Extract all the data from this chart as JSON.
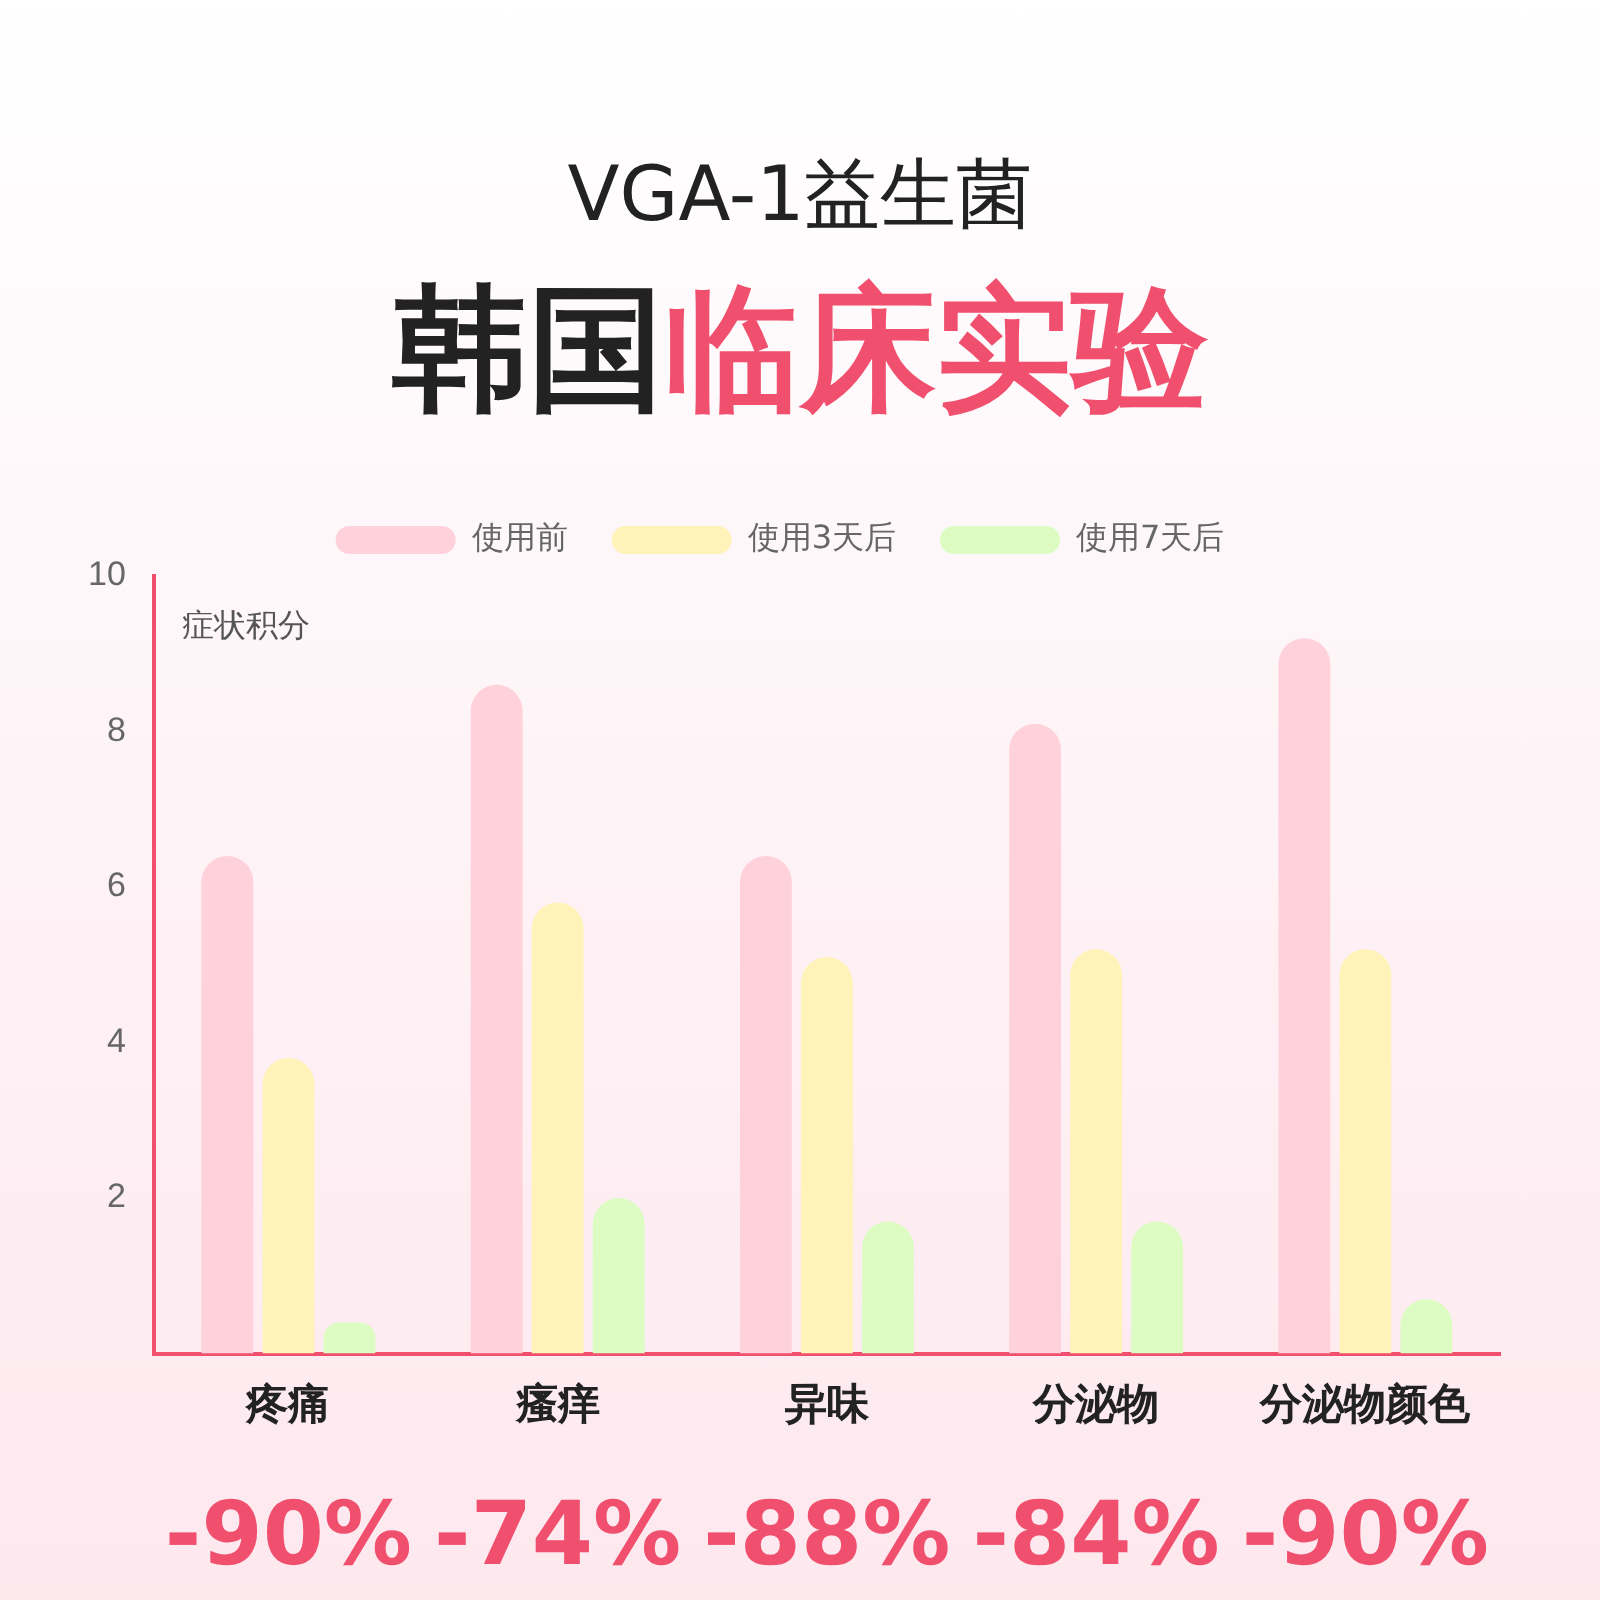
{
  "chart_data": {
    "type": "bar",
    "title": "VGA-1益生菌",
    "subtitle": "韩国临床实验",
    "ylabel": "症状积分",
    "categories": [
      "疼痛",
      "瘙痒",
      "异味",
      "分泌物",
      "分泌物颜色"
    ],
    "series": [
      {
        "name": "使用前",
        "color": "#ffd1da",
        "values": [
          6.4,
          8.6,
          6.4,
          8.1,
          9.2
        ]
      },
      {
        "name": "使用3天后",
        "color": "#fff3b9",
        "values": [
          3.8,
          5.8,
          5.1,
          5.2,
          5.2
        ]
      },
      {
        "name": "使用7天后",
        "color": "#dcfcc4",
        "values": [
          0.4,
          2.0,
          1.7,
          1.7,
          0.7
        ]
      }
    ],
    "ylim": [
      0,
      10
    ],
    "yticks": [
      2,
      4,
      6,
      8,
      10
    ],
    "grid": false,
    "legend": "top",
    "annotations": [
      "-90%",
      "-74%",
      "-88%",
      "-84%",
      "-90%"
    ]
  }
}
